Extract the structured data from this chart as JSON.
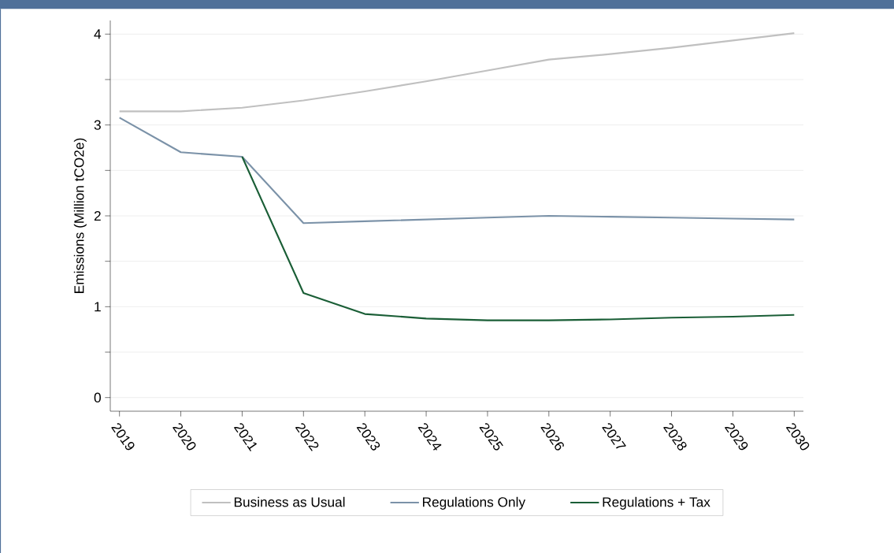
{
  "chart_data": {
    "type": "line",
    "ylabel": "Emissions (Million tCO2e)",
    "categories": [
      "2019",
      "2020",
      "2021",
      "2022",
      "2023",
      "2024",
      "2025",
      "2026",
      "2027",
      "2028",
      "2029",
      "2030"
    ],
    "series": [
      {
        "name": "Business as Usual",
        "color": "#c0c0c0",
        "values": [
          3.15,
          3.15,
          3.19,
          3.27,
          3.37,
          3.48,
          3.6,
          3.72,
          3.78,
          3.85,
          3.93,
          4.01
        ]
      },
      {
        "name": "Regulations Only",
        "color": "#7b92a8",
        "values": [
          3.08,
          2.7,
          2.65,
          1.92,
          1.94,
          1.96,
          1.98,
          2.0,
          1.99,
          1.98,
          1.97,
          1.96
        ]
      },
      {
        "name": "Regulations + Tax",
        "color": "#1a5e36",
        "values": [
          null,
          null,
          2.65,
          1.15,
          0.92,
          0.87,
          0.85,
          0.85,
          0.86,
          0.88,
          0.89,
          0.91
        ]
      }
    ],
    "ylim": [
      -0.15,
      4.15
    ],
    "yticks": [
      0,
      {
        "value": 0.5,
        "label": null
      },
      1,
      {
        "value": 1.5,
        "label": null
      },
      2,
      {
        "value": 2.5,
        "label": null
      },
      3,
      {
        "value": 3.5,
        "label": null
      },
      4
    ],
    "grid": "y",
    "legend": "bottom",
    "marker": "none",
    "line_style": "solid"
  }
}
